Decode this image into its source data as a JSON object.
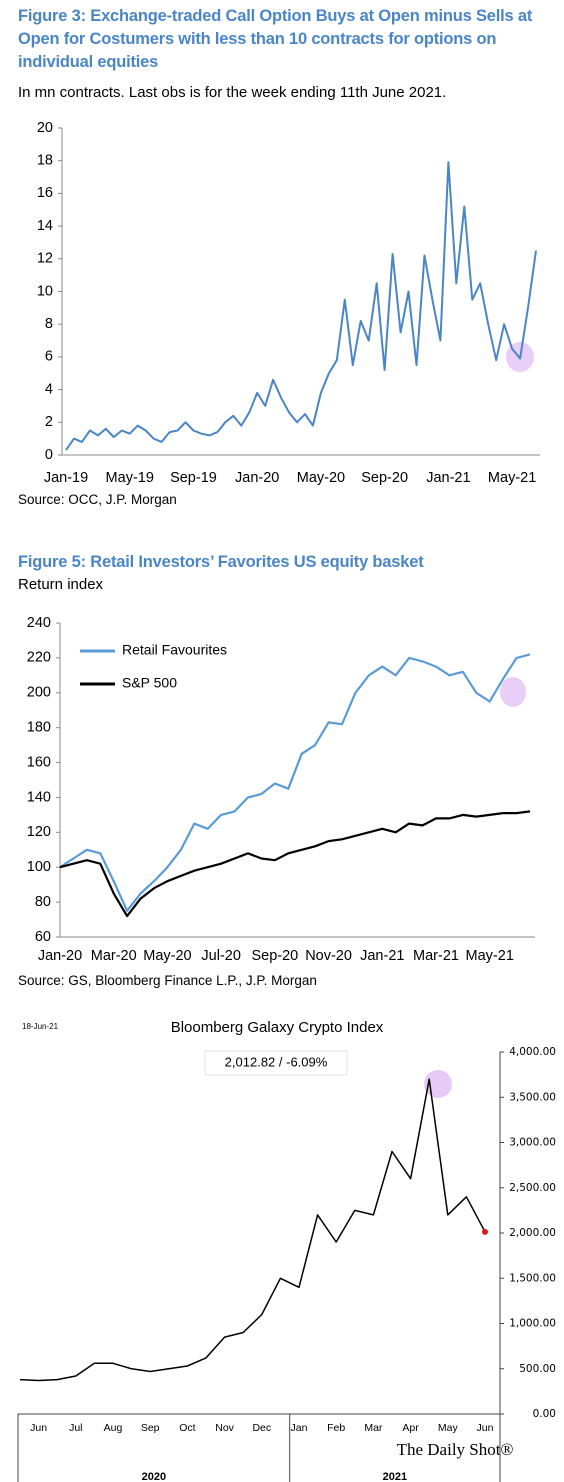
{
  "chart_data": [
    {
      "type": "line",
      "title": "Figure 3: Exchange-traded Call Option Buys at Open minus Sells at Open for Costumers with less than 10 contracts for options on individual equities",
      "subtitle": "In mn contracts. Last obs is for the week ending 11th June 2021.",
      "source": "Source:  OCC, J.P. Morgan",
      "color": "#4a86c5",
      "categories": [
        "Jan-19",
        null,
        null,
        null,
        null,
        null,
        null,
        null,
        "May-19",
        null,
        null,
        null,
        null,
        null,
        null,
        null,
        "Sep-19",
        null,
        null,
        null,
        null,
        null,
        null,
        null,
        "Jan-20",
        null,
        null,
        null,
        null,
        null,
        null,
        null,
        "May-20",
        null,
        null,
        null,
        null,
        null,
        null,
        null,
        "Sep-20",
        null,
        null,
        null,
        null,
        null,
        null,
        null,
        "Jan-21",
        null,
        null,
        null,
        null,
        null,
        null,
        null,
        "May-21",
        null,
        null,
        null
      ],
      "values": [
        0.3,
        1.0,
        0.8,
        1.5,
        1.2,
        1.6,
        1.1,
        1.5,
        1.3,
        1.8,
        1.5,
        1.0,
        0.8,
        1.4,
        1.5,
        2.0,
        1.5,
        1.3,
        1.2,
        1.4,
        2.0,
        2.4,
        1.8,
        2.6,
        3.8,
        3.0,
        4.6,
        3.5,
        2.6,
        2.0,
        2.5,
        1.8,
        3.8,
        5.0,
        5.8,
        9.5,
        5.5,
        8.2,
        7.0,
        10.5,
        5.2,
        12.3,
        7.5,
        10.0,
        5.5,
        12.2,
        9.5,
        7.0,
        17.9,
        10.5,
        15.2,
        9.5,
        10.5,
        8.0,
        5.8,
        8.0,
        6.5,
        5.9,
        9.0,
        12.5
      ],
      "ylim": [
        0,
        20
      ],
      "yticks": [
        0,
        2,
        4,
        6,
        8,
        10,
        12,
        14,
        16,
        18,
        20
      ]
    },
    {
      "type": "line",
      "title": "Figure 5: Retail Investors’ Favorites US equity basket",
      "subtitle": "Return index",
      "source": "Source: GS, Bloomberg Finance L.P., J.P. Morgan",
      "legend": "upper left",
      "categories": [
        "Jan-20",
        null,
        null,
        null,
        "Mar-20",
        null,
        null,
        null,
        "May-20",
        null,
        null,
        null,
        "Jul-20",
        null,
        null,
        null,
        "Sep-20",
        null,
        null,
        null,
        "Nov-20",
        null,
        null,
        null,
        "Jan-21",
        null,
        null,
        null,
        "Mar-21",
        null,
        null,
        null,
        "May-21",
        null,
        null,
        null
      ],
      "series": [
        {
          "name": "Retail Favourites",
          "color": "#5b9bd5",
          "values": [
            100,
            105,
            110,
            108,
            92,
            75,
            85,
            92,
            100,
            110,
            125,
            122,
            130,
            132,
            140,
            142,
            148,
            145,
            165,
            170,
            183,
            182,
            200,
            210,
            215,
            210,
            220,
            218,
            215,
            210,
            212,
            200,
            195,
            208,
            220,
            222
          ]
        },
        {
          "name": "S&P 500",
          "color": "#000000",
          "values": [
            100,
            102,
            104,
            102,
            85,
            72,
            82,
            88,
            92,
            95,
            98,
            100,
            102,
            105,
            108,
            105,
            104,
            108,
            110,
            112,
            115,
            116,
            118,
            120,
            122,
            120,
            125,
            124,
            128,
            128,
            130,
            129,
            130,
            131,
            131,
            132
          ]
        }
      ],
      "ylim": [
        60,
        240
      ],
      "yticks": [
        60,
        80,
        100,
        120,
        140,
        160,
        180,
        200,
        220,
        240
      ]
    },
    {
      "type": "line",
      "title": "Bloomberg Galaxy Crypto Index",
      "date": "18-Jun-21",
      "annotation": "2,012.82  /  -6.09%",
      "watermark": "The Daily Shot®",
      "color": "#000000",
      "end_marker_color": "#e0161b",
      "categories": [
        null,
        "Jun",
        null,
        "Jul",
        null,
        "Aug",
        null,
        "Sep",
        null,
        "Oct",
        null,
        "Nov",
        null,
        "Dec",
        null,
        "Jan",
        null,
        "Feb",
        null,
        "Mar",
        null,
        "Apr",
        null,
        "May",
        null,
        "Jun"
      ],
      "year_labels": [
        "2020",
        "2021"
      ],
      "values": [
        380,
        370,
        380,
        420,
        560,
        560,
        500,
        470,
        500,
        530,
        620,
        850,
        900,
        1100,
        1500,
        1400,
        2200,
        1900,
        2250,
        2200,
        2900,
        2600,
        3700,
        2200,
        2400,
        2012.82
      ],
      "ylim": [
        0,
        4000
      ],
      "yticks": [
        {
          "value": 0,
          "label": "0.00"
        },
        {
          "value": 500,
          "label": "500.00"
        },
        {
          "value": 1000,
          "label": "1,000.00"
        },
        {
          "value": 1500,
          "label": "1,500.00"
        },
        {
          "value": 2000,
          "label": "2,000.00"
        },
        {
          "value": 2500,
          "label": "2,500.00"
        },
        {
          "value": 3000,
          "label": "3,000.00"
        },
        {
          "value": 3500,
          "label": "3,500.00"
        },
        {
          "value": 4000,
          "label": "4,000.00"
        }
      ]
    }
  ]
}
